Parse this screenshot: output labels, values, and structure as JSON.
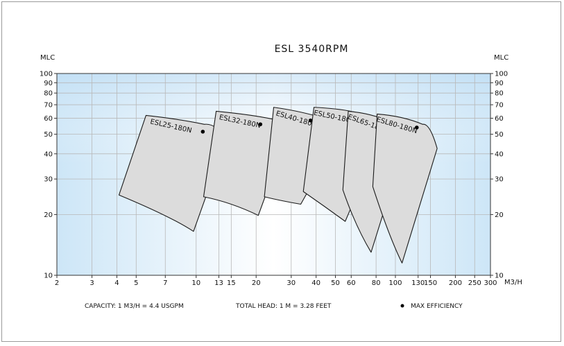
{
  "chart_data": {
    "type": "area",
    "title": "ESL  3540RPM",
    "ylabel_left": "MLC",
    "ylabel_right": "MLC",
    "xlabel": "M3/H",
    "x_scale": "log",
    "y_scale": "log",
    "xlim": [
      2,
      300
    ],
    "ylim": [
      10,
      100
    ],
    "x_ticks": [
      2,
      3,
      4,
      5,
      7,
      10,
      13,
      15,
      20,
      30,
      40,
      50,
      60,
      80,
      100,
      130,
      150,
      200,
      250,
      300
    ],
    "y_ticks": [
      10,
      20,
      30,
      40,
      50,
      60,
      70,
      80,
      90,
      100
    ],
    "y_ticks_right": [
      10,
      20,
      30,
      40,
      50,
      60,
      70,
      80,
      90,
      100
    ],
    "grid": true,
    "series": [
      {
        "name": "ESL25-180N",
        "polygon": [
          [
            4.1,
            25
          ],
          [
            5.6,
            62
          ],
          [
            8.2,
            59.5
          ],
          [
            11,
            56
          ],
          [
            14.2,
            47.5
          ],
          [
            9.7,
            16.5
          ],
          [
            7.5,
            19.5
          ],
          [
            4.1,
            25
          ]
        ],
        "max_efficiency": [
          10.8,
          51.5
        ]
      },
      {
        "name": "ESL32-180N",
        "polygon": [
          [
            10.9,
            24.5
          ],
          [
            12.6,
            65
          ],
          [
            19,
            62.5
          ],
          [
            24,
            59.5
          ],
          [
            29,
            50.5
          ],
          [
            20.5,
            19.8
          ],
          [
            15,
            23
          ],
          [
            10.9,
            24.5
          ]
        ],
        "max_efficiency": [
          21,
          56
        ]
      },
      {
        "name": "ESL40-180N",
        "polygon": [
          [
            22,
            24.5
          ],
          [
            24.5,
            68
          ],
          [
            34,
            65
          ],
          [
            45,
            59.5
          ],
          [
            53,
            50.5
          ],
          [
            33.5,
            22.5
          ],
          [
            26,
            23.5
          ],
          [
            22,
            24.5
          ]
        ],
        "max_efficiency": [
          37.5,
          58.5
        ]
      },
      {
        "name": "ESL50-180N",
        "polygon": [
          [
            34.5,
            26
          ],
          [
            39,
            68
          ],
          [
            55,
            67
          ],
          [
            68,
            63
          ],
          [
            84,
            47.5
          ],
          [
            56,
            18.5
          ],
          [
            44,
            22
          ],
          [
            34.5,
            26
          ]
        ],
        "max_efficiency": [
          59,
          59.5
        ]
      },
      {
        "name": "ESL65-180N",
        "polygon": [
          [
            54.5,
            26.5
          ],
          [
            58,
            65
          ],
          [
            81,
            63
          ],
          [
            98,
            56
          ],
          [
            113,
            46.5
          ],
          [
            75.5,
            13
          ],
          [
            63,
            17.5
          ],
          [
            54.5,
            26.5
          ]
        ],
        "max_efficiency": [
          92,
          55
        ]
      },
      {
        "name": "ESL80-180N",
        "polygon": [
          [
            77,
            27.5
          ],
          [
            81,
            63
          ],
          [
            110,
            61.5
          ],
          [
            137,
            56
          ],
          [
            162,
            42.5
          ],
          [
            108,
            11.5
          ],
          [
            93,
            15.5
          ],
          [
            77,
            27.5
          ]
        ],
        "max_efficiency": [
          128,
          54
        ]
      }
    ],
    "legend": {
      "position": "bottom",
      "marker_label": "MAX EFFICIENCY"
    },
    "notes": {
      "capacity": "CAPACITY: 1 M3/H = 4.4 USGPM",
      "head": "TOTAL HEAD: 1 M = 3.28 FEET"
    }
  }
}
